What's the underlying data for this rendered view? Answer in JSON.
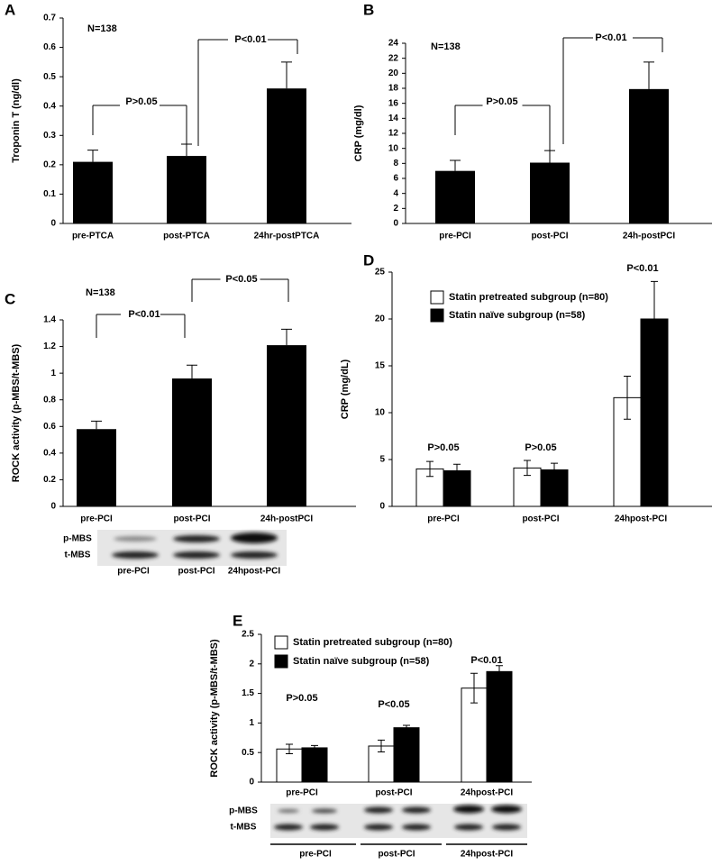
{
  "chart_data": [
    {
      "type": "bar",
      "panel": "A",
      "ylabel": "Troponin T (ng/dl)",
      "categories": [
        "pre-PTCA",
        "post-PTCA",
        "24hr-postPTCA"
      ],
      "values": [
        0.21,
        0.23,
        0.46
      ],
      "errors": [
        0.04,
        0.04,
        0.09
      ],
      "color": "#000000",
      "ylim": [
        0,
        0.7
      ],
      "yticks": [
        0,
        0.1,
        0.2,
        0.3,
        0.4,
        0.5,
        0.6,
        0.7
      ],
      "annotations": [
        "N=138",
        "P>0.05",
        "P<0.01"
      ]
    },
    {
      "type": "bar",
      "panel": "B",
      "ylabel": "CRP (mg/dl)",
      "categories": [
        "pre-PCI",
        "post-PCI",
        "24h-postPCI"
      ],
      "values": [
        7.0,
        8.1,
        17.9
      ],
      "errors": [
        1.4,
        1.6,
        3.6
      ],
      "color": "#000000",
      "ylim": [
        0,
        24
      ],
      "yticks": [
        0,
        2,
        4,
        6,
        8,
        10,
        12,
        14,
        16,
        18,
        20,
        22,
        24
      ],
      "annotations": [
        "N=138",
        "P>0.05",
        "P<0.01"
      ]
    },
    {
      "type": "bar",
      "panel": "C",
      "ylabel": "ROCK activity (p-MBS/t-MBS)",
      "categories": [
        "pre-PCI",
        "post-PCI",
        "24h-postPCI"
      ],
      "values": [
        0.58,
        0.96,
        1.21
      ],
      "errors": [
        0.06,
        0.1,
        0.12
      ],
      "color": "#000000",
      "ylim": [
        0,
        1.4
      ],
      "yticks": [
        0,
        0.2,
        0.4,
        0.6,
        0.8,
        1,
        1.2,
        1.4
      ],
      "annotations": [
        "N=138",
        "P<0.01",
        "P<0.05"
      ],
      "blot": {
        "rows": [
          "p-MBS",
          "t-MBS"
        ],
        "lanes": [
          "pre-PCI",
          "post-PCI",
          "24hpost-PCI"
        ]
      }
    },
    {
      "type": "grouped_bar",
      "panel": "D",
      "ylabel": "CRP (mg/dL)",
      "categories": [
        "pre-PCI",
        "post-PCI",
        "24hpost-PCI"
      ],
      "series": [
        {
          "name": "Statin pretreated subgroup (n=80)",
          "color": "#ffffff",
          "values": [
            4.0,
            4.1,
            11.6
          ],
          "errors": [
            0.8,
            0.8,
            2.3
          ]
        },
        {
          "name": "Statin naïve subgroup (n=58)",
          "color": "#000000",
          "values": [
            3.8,
            3.9,
            20.0
          ],
          "errors": [
            0.7,
            0.7,
            4.0
          ]
        }
      ],
      "ylim": [
        0,
        25
      ],
      "yticks": [
        0,
        5,
        10,
        15,
        20,
        25
      ],
      "annotations": [
        "P>0.05",
        "P>0.05",
        "P<0.01"
      ]
    },
    {
      "type": "grouped_bar",
      "panel": "E",
      "ylabel": "ROCK activity (p-MBS/t-MBS)",
      "categories": [
        "pre-PCI",
        "post-PCI",
        "24hpost-PCI"
      ],
      "series": [
        {
          "name": "Statin pretreated subgroup (n=80)",
          "color": "#ffffff",
          "values": [
            0.56,
            0.61,
            1.59
          ],
          "errors": [
            0.08,
            0.1,
            0.25
          ]
        },
        {
          "name": "Statin naïve subgroup (n=58)",
          "color": "#000000",
          "values": [
            0.58,
            0.92,
            1.87
          ],
          "errors": [
            0.04,
            0.04,
            0.1
          ]
        }
      ],
      "ylim": [
        0,
        2.5
      ],
      "yticks": [
        0,
        0.5,
        1,
        1.5,
        2,
        2.5
      ],
      "annotations": [
        "P>0.05",
        "P<0.05",
        "P<0.01"
      ],
      "blot": {
        "rows": [
          "p-MBS",
          "t-MBS"
        ],
        "lanes": [
          "pre-PCI",
          "post-PCI",
          "24hpost-PCI"
        ]
      }
    }
  ]
}
